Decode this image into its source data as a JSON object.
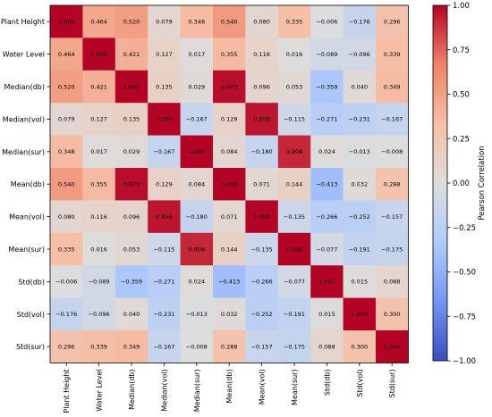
{
  "chart_data": {
    "type": "heatmap",
    "title": "",
    "row_labels": [
      "Plant Height",
      "Water Level",
      "Median(db)",
      "Median(vol)",
      "Median(sur)",
      "Mean(db)",
      "Mean(vol)",
      "Mean(sur)",
      "Std(db)",
      "Std(vol)",
      "Std(sur)"
    ],
    "col_labels": [
      "Plant Height",
      "Water Level",
      "Median(db)",
      "Median(vol)",
      "Median(sur)",
      "Mean(db)",
      "Mean(vol)",
      "Mean(sur)",
      "Std(db)",
      "Std(vol)",
      "Std(sur)"
    ],
    "values": [
      [
        1.0,
        0.464,
        0.52,
        0.079,
        0.348,
        0.54,
        0.08,
        0.335,
        -0.006,
        -0.176,
        0.296
      ],
      [
        0.464,
        1.0,
        0.421,
        0.127,
        0.017,
        0.355,
        0.116,
        0.016,
        -0.089,
        -0.096,
        0.339
      ],
      [
        0.52,
        0.421,
        1.0,
        0.135,
        0.029,
        0.975,
        0.096,
        0.053,
        -0.359,
        0.04,
        0.349
      ],
      [
        0.079,
        0.127,
        0.135,
        1.0,
        -0.167,
        0.129,
        0.956,
        -0.115,
        -0.271,
        -0.231,
        -0.167
      ],
      [
        0.348,
        0.017,
        0.029,
        -0.167,
        1.0,
        0.084,
        -0.18,
        0.908,
        0.024,
        -0.013,
        -0.008
      ],
      [
        0.54,
        0.355,
        0.975,
        0.129,
        0.084,
        1.0,
        0.071,
        0.144,
        -0.413,
        0.032,
        0.288
      ],
      [
        0.08,
        0.116,
        0.096,
        0.956,
        -0.18,
        0.071,
        1.0,
        -0.135,
        -0.266,
        -0.252,
        -0.157
      ],
      [
        0.335,
        0.016,
        0.053,
        -0.115,
        0.908,
        0.144,
        -0.135,
        1.0,
        -0.077,
        -0.191,
        -0.175
      ],
      [
        -0.006,
        -0.089,
        -0.359,
        -0.271,
        0.024,
        -0.413,
        -0.266,
        -0.077,
        1.0,
        0.015,
        0.088
      ],
      [
        -0.176,
        -0.096,
        0.04,
        -0.231,
        -0.013,
        0.032,
        -0.252,
        -0.191,
        0.015,
        1.0,
        0.3
      ],
      [
        0.296,
        0.339,
        0.349,
        -0.167,
        -0.008,
        0.288,
        -0.157,
        -0.175,
        0.088,
        0.3,
        1.0
      ]
    ],
    "value_range": [
      -1.0,
      1.0
    ],
    "colormap": "coolwarm",
    "colormap_stops": [
      "#3b4cc0",
      "#7396f5",
      "#b0cbfc",
      "#dddddd",
      "#f6bfa6",
      "#ee8468",
      "#b40426"
    ],
    "colorbar": {
      "label": "Pearson Correlation",
      "ticks": [
        "1.00",
        "0.75",
        "0.50",
        "0.25",
        "0.00",
        "−0.25",
        "−0.50",
        "−0.75",
        "−1.00"
      ]
    },
    "grid": false
  }
}
